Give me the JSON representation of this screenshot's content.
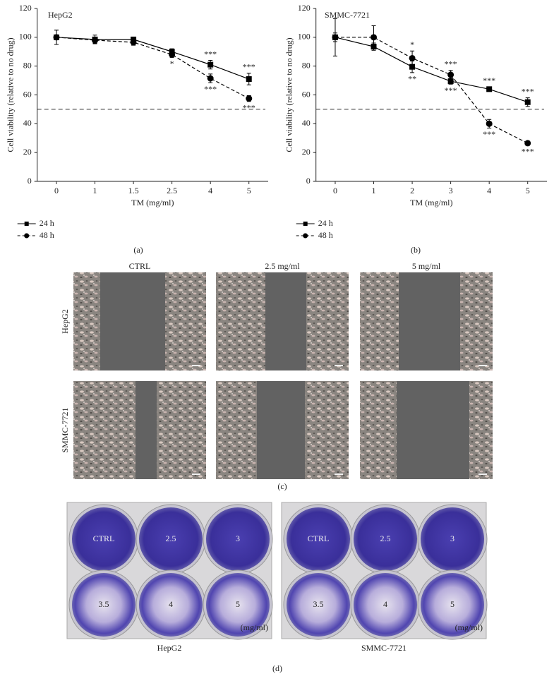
{
  "chart_data": [
    {
      "type": "line",
      "title": "HepG2",
      "panel_label": "(a)",
      "xlabel": "TM (mg/ml)",
      "ylabel": "Cell viability (relative to no drug)",
      "categories": [
        "0",
        "1",
        "1.5",
        "2.5",
        "4",
        "5"
      ],
      "ylim": [
        0,
        120
      ],
      "yticks": [
        0,
        20,
        40,
        60,
        80,
        100,
        120
      ],
      "hline": 50,
      "series": [
        {
          "name": "24 h",
          "color": "#000000",
          "line_style": "solid",
          "marker": "square",
          "values": [
            100,
            98.5,
            98.5,
            90,
            81,
            71
          ],
          "errors": [
            5,
            3,
            1.5,
            2,
            3,
            4
          ],
          "significance": [
            null,
            null,
            null,
            null,
            "***",
            "***"
          ]
        },
        {
          "name": "48 h",
          "color": "#000000",
          "line_style": "dashed",
          "marker": "circle",
          "values": [
            100,
            98,
            96.5,
            88,
            71.5,
            57.5
          ],
          "errors": [
            5,
            2,
            2,
            2,
            3,
            2
          ],
          "significance": [
            null,
            null,
            null,
            "*",
            "***",
            "***"
          ]
        }
      ]
    },
    {
      "type": "line",
      "title": "SMMC-7721",
      "panel_label": "(b)",
      "xlabel": "TM (mg/ml)",
      "ylabel": "Cell viability (relative to no drug)",
      "categories": [
        "0",
        "1",
        "2",
        "3",
        "4",
        "5"
      ],
      "ylim": [
        0,
        120
      ],
      "yticks": [
        0,
        20,
        40,
        60,
        80,
        100,
        120
      ],
      "hline": 50,
      "series": [
        {
          "name": "24 h",
          "color": "#000000",
          "line_style": "solid",
          "marker": "square",
          "values": [
            100,
            93.5,
            79.5,
            69.5,
            64,
            55
          ],
          "errors": [
            3,
            2.5,
            4,
            2,
            1.5,
            3
          ],
          "significance": [
            null,
            null,
            "**",
            "***",
            "***",
            "***"
          ]
        },
        {
          "name": "48 h",
          "color": "#000000",
          "line_style": "dashed",
          "marker": "circle",
          "values": [
            100,
            100,
            85.5,
            74,
            40,
            26.5
          ],
          "errors": [
            13,
            8,
            5,
            3,
            3,
            1.5
          ],
          "significance": [
            null,
            null,
            "*",
            "***",
            "***",
            "***"
          ]
        }
      ]
    }
  ],
  "migration": {
    "panel_label": "(c)",
    "columns": [
      "CTRL",
      "2.5 mg/ml",
      "5 mg/ml"
    ],
    "rows": [
      "HepG2",
      "SMMC-7721"
    ]
  },
  "crystal_violet": {
    "panel_label": "(d)",
    "plates": [
      {
        "name": "HepG2",
        "wells": [
          "CTRL",
          "2.5",
          "3",
          "3.5",
          "4",
          "5"
        ],
        "unit": "(mg/ml)"
      },
      {
        "name": "SMMC-7721",
        "wells": [
          "CTRL",
          "2.5",
          "3",
          "3.5",
          "4",
          "5"
        ],
        "unit": "(mg/ml)"
      }
    ]
  }
}
